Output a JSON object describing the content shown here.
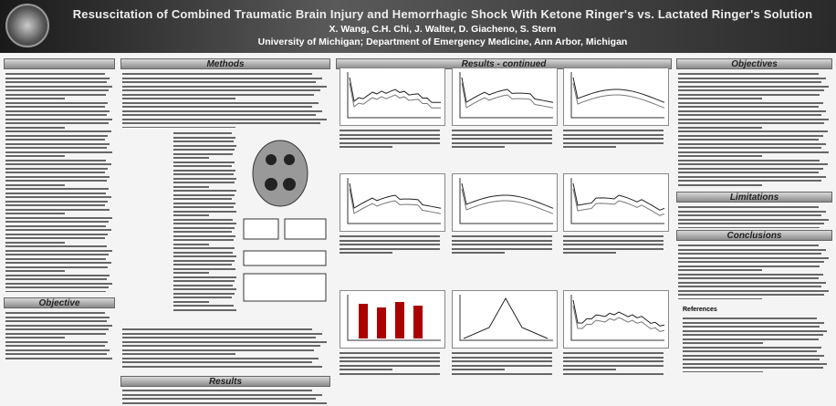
{
  "header": {
    "title": "Resuscitation of Combined Traumatic Brain Injury and Hemorrhagic Shock With Ketone Ringer's vs. Lactated Ringer's Solution",
    "authors": "X. Wang, C.H. Chi, J. Walter, D. Giacheno, S. Stern",
    "affiliation": "University of Michigan; Department of Emergency Medicine, Ann Arbor, Michigan"
  },
  "sections": {
    "objective": "Objective",
    "methods": "Methods",
    "results": "Results",
    "results_continued": "Results - continued",
    "objectives": "Objectives",
    "limitations": "Limitations",
    "conclusions": "Conclusions",
    "references": "References"
  }
}
